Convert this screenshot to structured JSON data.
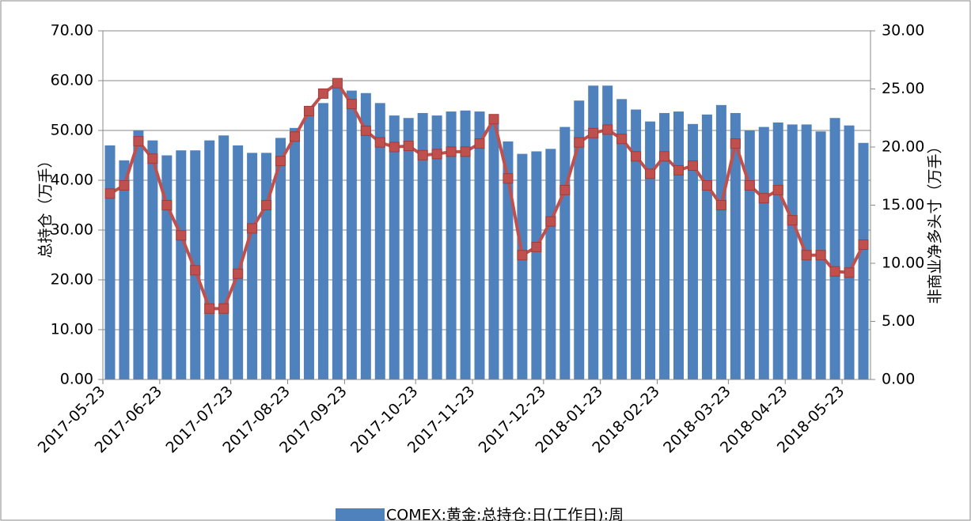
{
  "chart_data": {
    "type": "bar-line",
    "categories": [
      "2017-05-23",
      null,
      null,
      null,
      "2017-06-23",
      null,
      null,
      null,
      null,
      "2017-07-23",
      null,
      null,
      null,
      "2017-08-23",
      null,
      null,
      null,
      "2017-09-23",
      null,
      null,
      null,
      null,
      "2017-10-23",
      null,
      null,
      null,
      "2017-11-23",
      null,
      null,
      null,
      null,
      "2017-12-23",
      null,
      null,
      null,
      "2018-01-23",
      null,
      null,
      null,
      "2018-02-23",
      null,
      null,
      null,
      null,
      "2018-03-23",
      null,
      null,
      null,
      "2018-04-23",
      null,
      null,
      null,
      "2018-05-23",
      null
    ],
    "series": [
      {
        "name": "COMEX:黄金:总持仓:日(工作日):周",
        "color": "#4f81bd",
        "axis": "y",
        "values": [
          47,
          44,
          50,
          48,
          45,
          46,
          46,
          48,
          49,
          47,
          45.5,
          45.5,
          48.5,
          50.5,
          53,
          55.5,
          58.5,
          58,
          57.5,
          55.5,
          53,
          52.5,
          53.5,
          53,
          53.8,
          54,
          53.8,
          53,
          47.8,
          45.3,
          45.8,
          46.3,
          50.7,
          56,
          59,
          59,
          56.3,
          54.2,
          51.8,
          53.5,
          53.8,
          51.3,
          53.2,
          55.1,
          53.5,
          50,
          50.7,
          51.6,
          51.2,
          51.2,
          49.8,
          52.5,
          51,
          47.5
        ]
      },
      {
        "color": "#c0504d",
        "axis": "y2",
        "values": [
          16.0,
          16.7,
          20.5,
          19.0,
          15.0,
          12.4,
          9.4,
          6.1,
          6.1,
          9.1,
          13.0,
          15.0,
          18.8,
          20.9,
          23.1,
          24.6,
          25.5,
          23.7,
          21.4,
          20.4,
          20.0,
          20.1,
          19.3,
          19.4,
          19.6,
          19.6,
          20.3,
          22.4,
          17.3,
          10.7,
          11.4,
          13.6,
          16.3,
          20.4,
          21.2,
          21.5,
          20.7,
          19.2,
          17.7,
          19.2,
          18.0,
          18.4,
          16.7,
          15.0,
          20.3,
          16.7,
          15.6,
          16.3,
          13.7,
          10.7,
          10.7,
          9.3,
          9.2,
          11.6
        ]
      }
    ],
    "y_label": "总持仓（万手）",
    "y2_label": "非商业净多头寸（万手）",
    "ylim": [
      0,
      70
    ],
    "yticks": [
      {
        "value": 0,
        "label": "0.00"
      },
      {
        "value": 10,
        "label": "10.00"
      },
      {
        "value": 20,
        "label": "20.00"
      },
      {
        "value": 30,
        "label": "30.00"
      },
      {
        "value": 40,
        "label": "40.00"
      },
      {
        "value": 50,
        "label": "50.00"
      },
      {
        "value": 60,
        "label": "60.00"
      },
      {
        "value": 70,
        "label": "70.00"
      }
    ],
    "y2lim": [
      0,
      30
    ],
    "y2ticks": [
      {
        "value": 0,
        "label": "0.00"
      },
      {
        "value": 5,
        "label": "5.00"
      },
      {
        "value": 10,
        "label": "10.00"
      },
      {
        "value": 15,
        "label": "15.00"
      },
      {
        "value": 20,
        "label": "20.00"
      },
      {
        "value": 25,
        "label": "25.00"
      },
      {
        "value": 30,
        "label": "30.00"
      }
    ],
    "grid": true,
    "legend": "bottom"
  }
}
